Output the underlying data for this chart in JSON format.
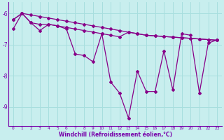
{
  "x": [
    0,
    1,
    2,
    3,
    4,
    5,
    6,
    7,
    8,
    9,
    10,
    11,
    12,
    13,
    14,
    15,
    16,
    17,
    18,
    19,
    20,
    21,
    22,
    23
  ],
  "line_top": [
    -6.2,
    -6.0,
    -6.05,
    -6.1,
    -6.15,
    -6.2,
    -6.25,
    -6.3,
    -6.35,
    -6.4,
    -6.45,
    -6.5,
    -6.55,
    -6.6,
    -6.65,
    -6.7,
    -6.72,
    -6.74,
    -6.76,
    -6.78,
    -6.8,
    -6.82,
    -6.84,
    -6.86
  ],
  "line_mid": [
    -6.5,
    -6.0,
    -6.3,
    -6.35,
    -6.35,
    -6.4,
    -6.45,
    -6.5,
    -6.55,
    -6.6,
    -6.65,
    -6.7,
    -6.75,
    -6.6,
    -6.65,
    -6.7,
    -6.72,
    -6.74,
    -6.76,
    -6.78,
    -6.8,
    -6.82,
    -6.84,
    -6.86
  ],
  "line_volatile": [
    -6.2,
    -6.0,
    -6.3,
    -6.55,
    -6.35,
    -6.4,
    -6.5,
    -7.3,
    -7.35,
    -7.55,
    -6.65,
    -8.2,
    -8.55,
    -9.35,
    -7.85,
    -8.5,
    -8.5,
    -7.2,
    -8.45,
    -6.65,
    -6.7,
    -8.55,
    -6.95,
    -6.85
  ],
  "background_color": "#c8eeee",
  "line_color": "#880088",
  "grid_color": "#a8dede",
  "border_color": "#7700aa",
  "xlabel": "Windchill (Refroidissement éolien,°C)",
  "ylim": [
    -9.6,
    -5.65
  ],
  "xlim": [
    -0.5,
    23.5
  ],
  "yticks": [
    -9,
    -8,
    -7,
    -6
  ],
  "xticks": [
    0,
    1,
    2,
    3,
    4,
    5,
    6,
    7,
    8,
    9,
    10,
    11,
    12,
    13,
    14,
    15,
    16,
    17,
    18,
    19,
    20,
    21,
    22,
    23
  ]
}
